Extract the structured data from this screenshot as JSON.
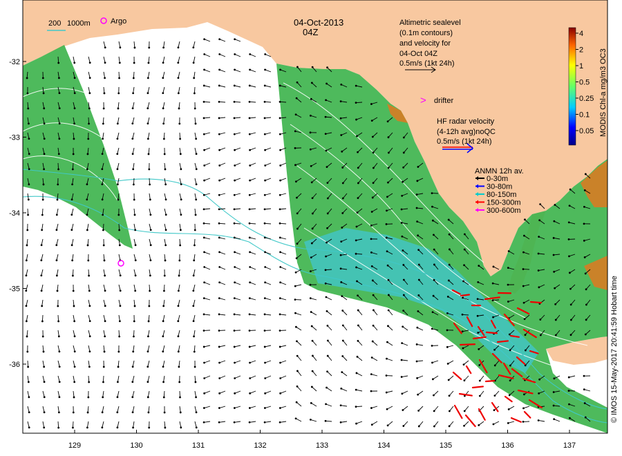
{
  "title": {
    "date": "04-Oct-2013",
    "time": "04Z"
  },
  "isobath_legend": {
    "depth1": "200",
    "depth2": "1000m"
  },
  "argo_label": "Argo",
  "altimetry_note": [
    "Altimetric sealevel",
    "(0.1m contours)",
    "and velocity for",
    "04-Oct 04Z",
    "0.5m/s (1kt 24h)"
  ],
  "drifter_label": "drifter",
  "hf_radar_note": [
    "HF radar velocity",
    "(4-12h avg)noQC",
    "0.5m/s (1kt 24h)"
  ],
  "anmn": {
    "title": "ANMN 12h av.",
    "items": [
      {
        "label": "0-30m",
        "color": "#000000"
      },
      {
        "label": "30-80m",
        "color": "#0000ff"
      },
      {
        "label": "80-150m",
        "color": "#00cccc"
      },
      {
        "label": "150-300m",
        "color": "#ff0000"
      },
      {
        "label": "300-600m",
        "color": "#ff00ff"
      }
    ]
  },
  "colorbar": {
    "label": "MODIS Chl-a mg/m3 OC3",
    "ticks": [
      "4",
      "2",
      "1",
      "0.5",
      "0.25",
      "0.1",
      "0.05"
    ]
  },
  "credit": "© IMOS 15-May-2017 20:41:59 Hobart time",
  "axes": {
    "x_ticks": [
      "129",
      "130",
      "131",
      "132",
      "133",
      "134",
      "135",
      "136",
      "137"
    ],
    "y_ticks": [
      "-32",
      "-33",
      "-34",
      "-35",
      "-36"
    ]
  },
  "colors": {
    "land": "#f8c8a0",
    "chl_green": "#3bb34a",
    "chl_cyan": "#40c8d8",
    "isobath_200": "#40c8c8",
    "isobath_1000": "#50e0e0",
    "argo": "#ff00ff",
    "hf_radar": "#0000ff"
  }
}
